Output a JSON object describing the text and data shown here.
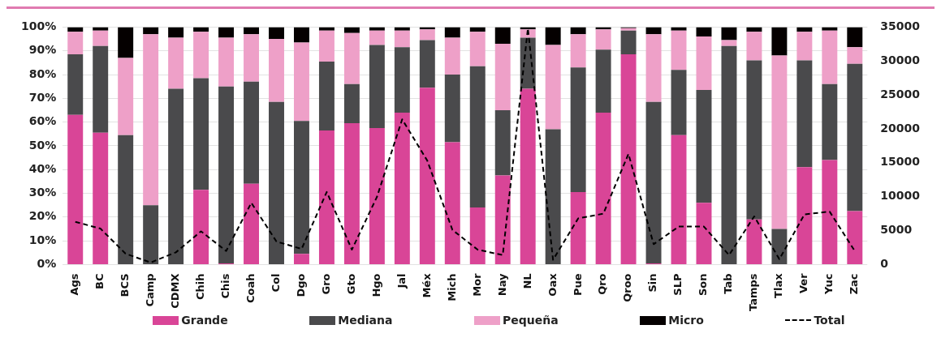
{
  "chart_data": {
    "type": "bar",
    "stacked": true,
    "categories": [
      "Ags",
      "BC",
      "BCS",
      "Camp",
      "CDMX",
      "Chih",
      "Chis",
      "Coah",
      "Col",
      "Dgo",
      "Gro",
      "Gto",
      "Hgo",
      "Jal",
      "Méx",
      "Mich",
      "Mor",
      "Nay",
      "NL",
      "Oax",
      "Pue",
      "Qro",
      "Qroo",
      "Sin",
      "SLP",
      "Son",
      "Tab",
      "Tamps",
      "Tlax",
      "Ver",
      "Yuc",
      "Zac"
    ],
    "series": [
      {
        "name": "Grande",
        "color": "#d94597",
        "values": [
          63,
          55.5,
          0,
          0,
          0,
          31.5,
          0.5,
          34,
          0,
          4.5,
          56.5,
          59.5,
          57.5,
          64,
          74.5,
          51.5,
          24,
          37.5,
          74,
          0,
          30.5,
          64,
          88.5,
          0.5,
          54.5,
          26,
          0,
          19,
          0,
          41,
          44,
          22.5
        ]
      },
      {
        "name": "Mediana",
        "color": "#4a4a4c",
        "values": [
          25.5,
          36.5,
          54.5,
          25,
          74,
          47,
          74.5,
          43,
          68.5,
          56,
          29,
          16.5,
          35,
          27.5,
          20,
          28.5,
          59.5,
          27.5,
          21.5,
          57,
          52.5,
          26.5,
          10,
          68,
          27.5,
          47.5,
          92,
          67,
          15,
          45,
          32,
          62
        ]
      },
      {
        "name": "Pequeña",
        "color": "#eea0c8",
        "values": [
          9.5,
          6.5,
          32.5,
          72,
          21.5,
          19.5,
          20.5,
          20,
          26.5,
          33,
          13,
          21.5,
          6,
          7,
          4.5,
          15.5,
          14.5,
          28,
          3.5,
          35.5,
          14,
          8.5,
          1,
          28.5,
          16.5,
          22.5,
          2.5,
          12,
          73,
          12,
          22.5,
          7
        ]
      },
      {
        "name": "Micro",
        "color": "#050000",
        "values": [
          2,
          1.5,
          13,
          3,
          4.5,
          2,
          4.5,
          3,
          5,
          6.5,
          1.5,
          2.5,
          1.5,
          1.5,
          1,
          4.5,
          2,
          7,
          1,
          7.5,
          3,
          1,
          0.5,
          3,
          1.5,
          4,
          5.5,
          2,
          12,
          2,
          1.5,
          8.5
        ]
      },
      {
        "name": "Total",
        "type": "line",
        "axis": "y2",
        "color": "#000000",
        "line_style": "dashed",
        "marker": "none",
        "values": [
          6300,
          5300,
          1600,
          300,
          1800,
          4900,
          2000,
          9100,
          3400,
          2300,
          10700,
          2200,
          10000,
          21400,
          15300,
          5100,
          2200,
          1400,
          34800,
          700,
          6800,
          7500,
          16300,
          3000,
          5600,
          5600,
          1400,
          7100,
          800,
          7400,
          7800,
          2000
        ]
      }
    ],
    "ylim": [
      0,
      100
    ],
    "yticks": [
      {
        "value": 0,
        "label": "0%"
      },
      {
        "value": 10,
        "label": "10%"
      },
      {
        "value": 20,
        "label": "20%"
      },
      {
        "value": 30,
        "label": "30%"
      },
      {
        "value": 40,
        "label": "40%"
      },
      {
        "value": 50,
        "label": "50%"
      },
      {
        "value": 60,
        "label": "60%"
      },
      {
        "value": 70,
        "label": "70%"
      },
      {
        "value": 80,
        "label": "80%"
      },
      {
        "value": 90,
        "label": "90%"
      },
      {
        "value": 100,
        "label": "100%"
      }
    ],
    "y2lim": [
      0,
      35000
    ],
    "y2ticks": [
      0,
      5000,
      10000,
      15000,
      20000,
      25000,
      30000,
      35000
    ],
    "grid": "y",
    "legend": "bottom"
  }
}
